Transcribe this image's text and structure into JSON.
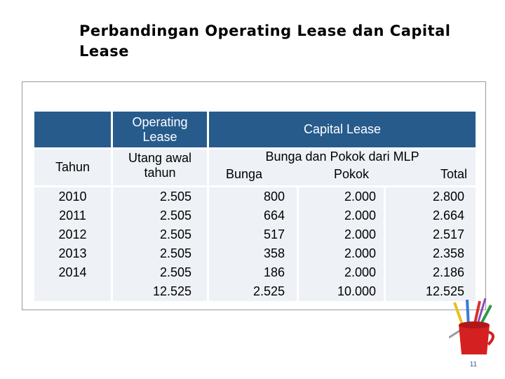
{
  "title": "Perbandingan Operating Lease dan Capital Lease",
  "table": {
    "tahun_header": "Tahun",
    "op_header": "Operating Lease",
    "op_subheader": "Utang awal tahun",
    "cap_header": "Capital Lease",
    "cap_subheader": "Bunga dan Pokok dari MLP",
    "cap_columns": [
      "Bunga",
      "Pokok",
      "Total"
    ],
    "years": [
      "2010",
      "2011",
      "2012",
      "2013",
      "2014"
    ],
    "utang_awal": [
      "2.505",
      "2.505",
      "2.505",
      "2.505",
      "2.505"
    ],
    "bunga": [
      "800",
      "664",
      "517",
      "358",
      "186"
    ],
    "pokok": [
      "2.000",
      "2.000",
      "2.000",
      "2.000",
      "2.000"
    ],
    "total": [
      "2.800",
      "2.664",
      "2.517",
      "2.358",
      "2.186"
    ],
    "totals": {
      "utang_awal": "12.525",
      "bunga": "2.525",
      "pokok": "10.000",
      "total": "12.525"
    }
  },
  "page_number": "11",
  "colors": {
    "header_blue": "#265b8c",
    "cell_light": "#eef2f7",
    "frame_border": "#9a9a9a"
  }
}
